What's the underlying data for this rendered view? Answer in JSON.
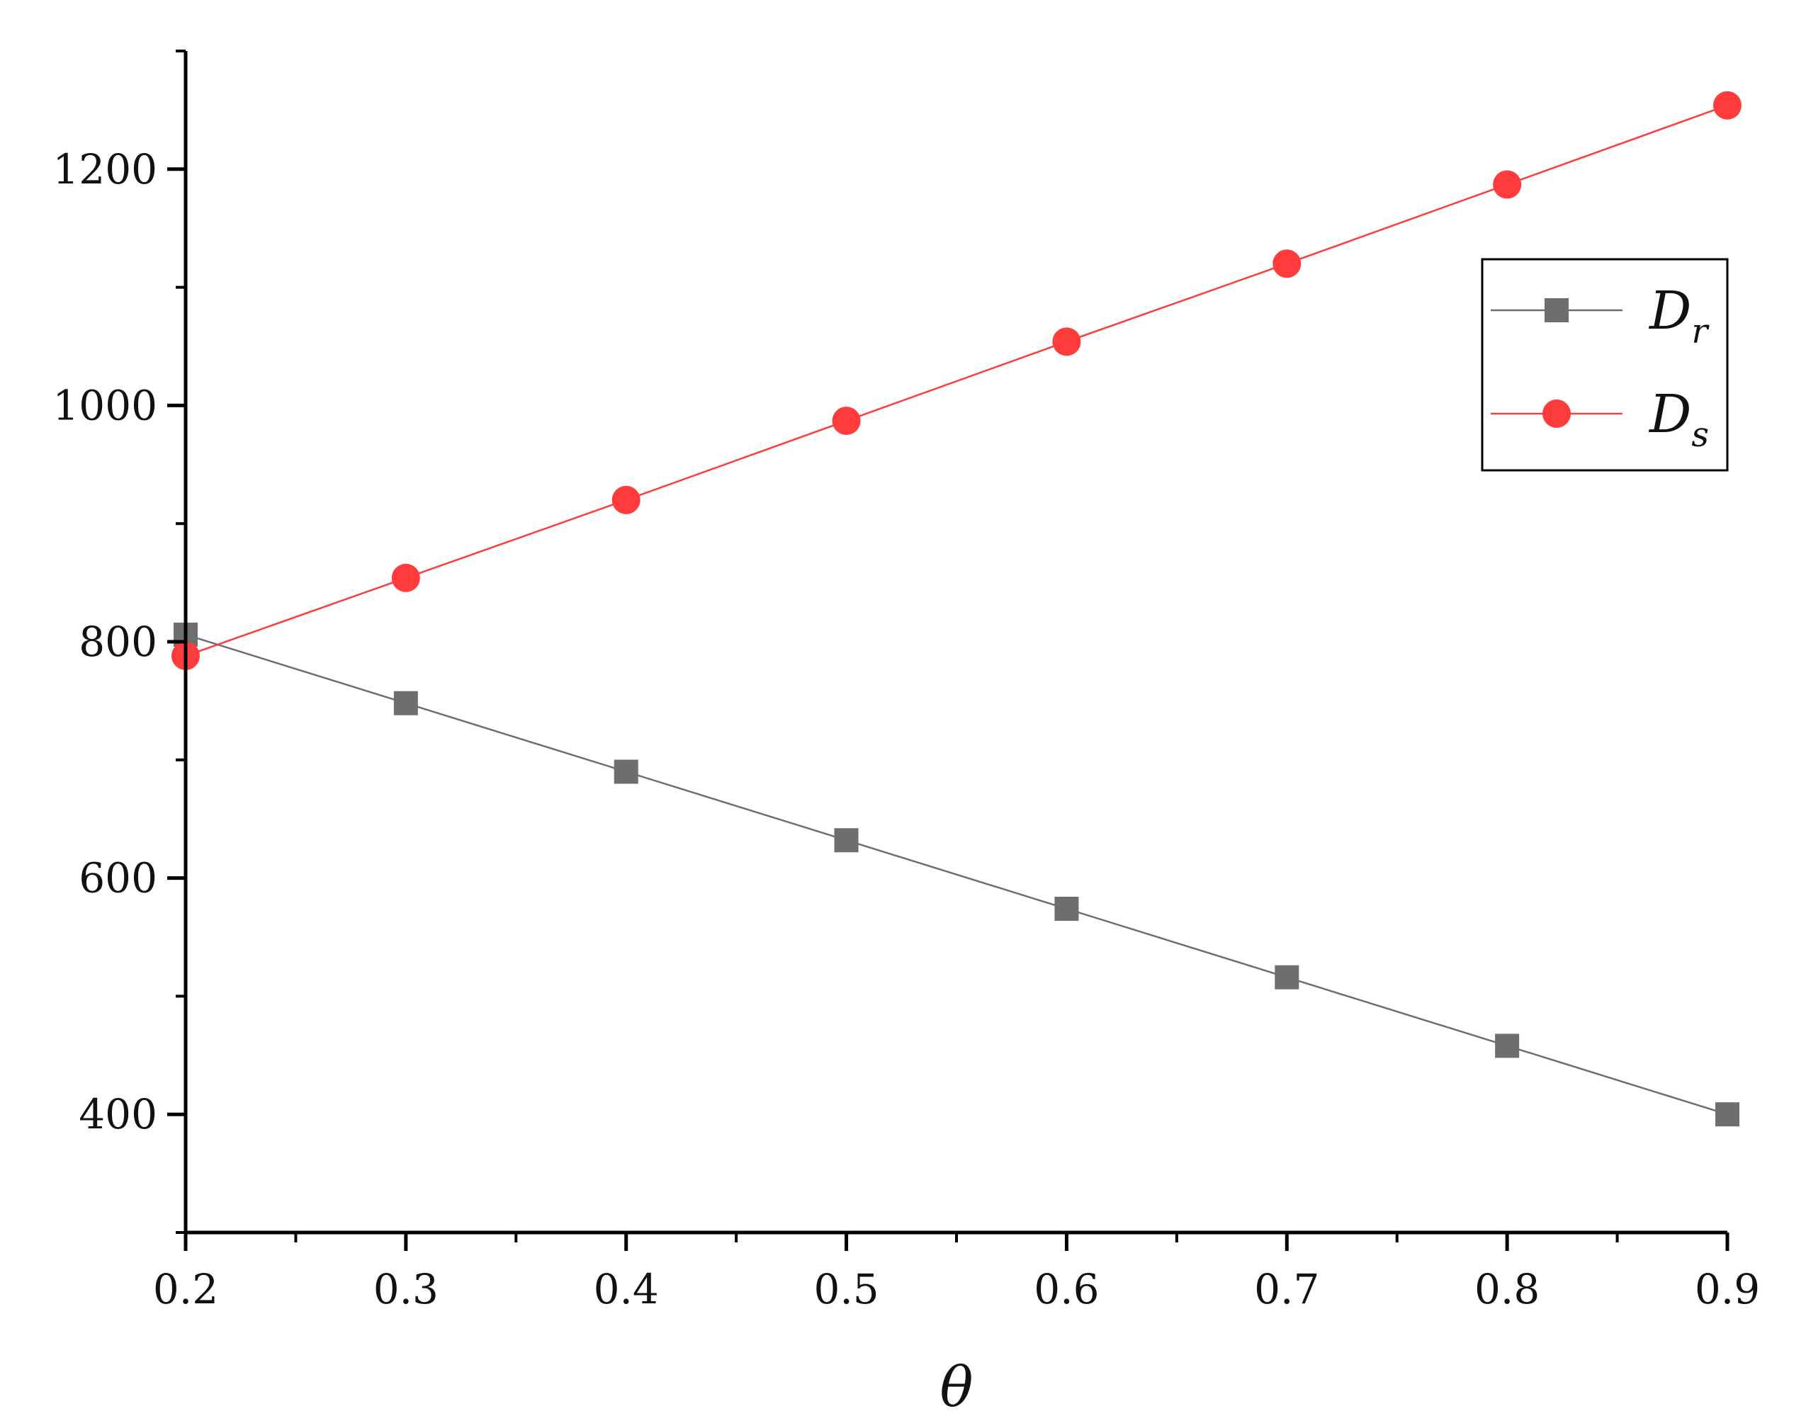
{
  "chart_data": {
    "type": "line",
    "title": "",
    "xlabel": "θ",
    "ylabel": "",
    "xlim": [
      0.2,
      0.9
    ],
    "ylim": [
      300,
      1300
    ],
    "x_ticks": [
      "0.2",
      "0.3",
      "0.4",
      "0.5",
      "0.6",
      "0.7",
      "0.8",
      "0.9"
    ],
    "y_ticks": [
      "400",
      "600",
      "800",
      "1000",
      "1200"
    ],
    "x_tick_values": [
      0.2,
      0.3,
      0.4,
      0.5,
      0.6,
      0.7,
      0.8,
      0.9
    ],
    "y_tick_values": [
      400,
      600,
      800,
      1000,
      1200
    ],
    "x_minor_step": 0.05,
    "y_minor_step": 100,
    "grid": false,
    "legend_position": "top-right",
    "x": [
      0.2,
      0.3,
      0.4,
      0.5,
      0.6,
      0.7,
      0.8,
      0.9
    ],
    "series": [
      {
        "name_main": "D",
        "name_sub": "r",
        "marker": "square",
        "color": "#6e6e6e",
        "values": [
          806,
          748,
          690,
          632,
          574,
          516,
          458,
          400
        ]
      },
      {
        "name_main": "D",
        "name_sub": "s",
        "marker": "circle",
        "color": "#ff3b3b",
        "values": [
          788,
          854,
          920,
          987,
          1054,
          1120,
          1187,
          1254
        ]
      }
    ]
  }
}
